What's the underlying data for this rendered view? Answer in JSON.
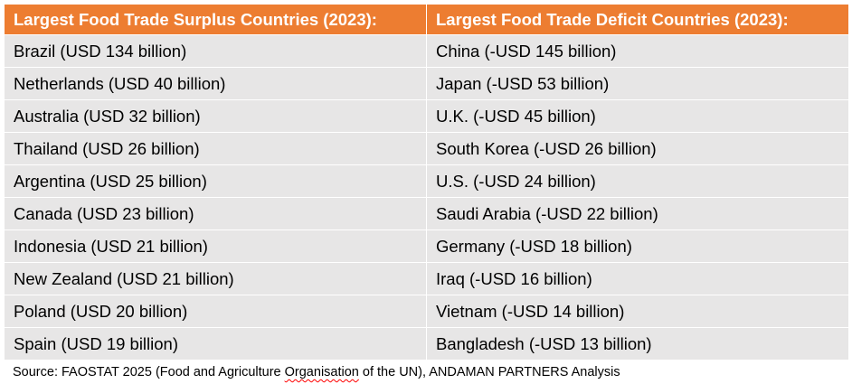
{
  "table": {
    "headers": [
      "Largest Food Trade Surplus Countries (2023):",
      "Largest Food Trade Deficit Countries (2023):"
    ],
    "rows": [
      [
        "Brazil (USD 134 billion)",
        "China (-USD 145 billion)"
      ],
      [
        "Netherlands (USD 40 billion)",
        "Japan (-USD 53 billion)"
      ],
      [
        "Australia (USD 32 billion)",
        "U.K. (-USD 45 billion)"
      ],
      [
        "Thailand (USD 26 billion)",
        "South Korea (-USD 26 billion)"
      ],
      [
        "Argentina (USD 25 billion)",
        "U.S. (-USD 24 billion)"
      ],
      [
        "Canada (USD 23 billion)",
        "Saudi Arabia (-USD 22 billion)"
      ],
      [
        "Indonesia (USD 21 billion)",
        "Germany (-USD 18 billion)"
      ],
      [
        "New Zealand (USD 21 billion)",
        "Iraq (-USD 16 billion)"
      ],
      [
        "Poland (USD 20 billion)",
        "Vietnam (-USD 14 billion)"
      ],
      [
        "Spain (USD 19 billion)",
        "Bangladesh (-USD 13 billion)"
      ]
    ]
  },
  "source": {
    "before": "Source: FAOSTAT 2025 (Food and Agriculture ",
    "flagged": "Organisation",
    "after": " of the UN), ANDAMAN PARTNERS Analysis"
  },
  "colors": {
    "header_bg": "#ed7d31",
    "header_text": "#ffffff",
    "cell_bg": "#e7e6e6",
    "spellcheck_underline": "#ff0000"
  }
}
